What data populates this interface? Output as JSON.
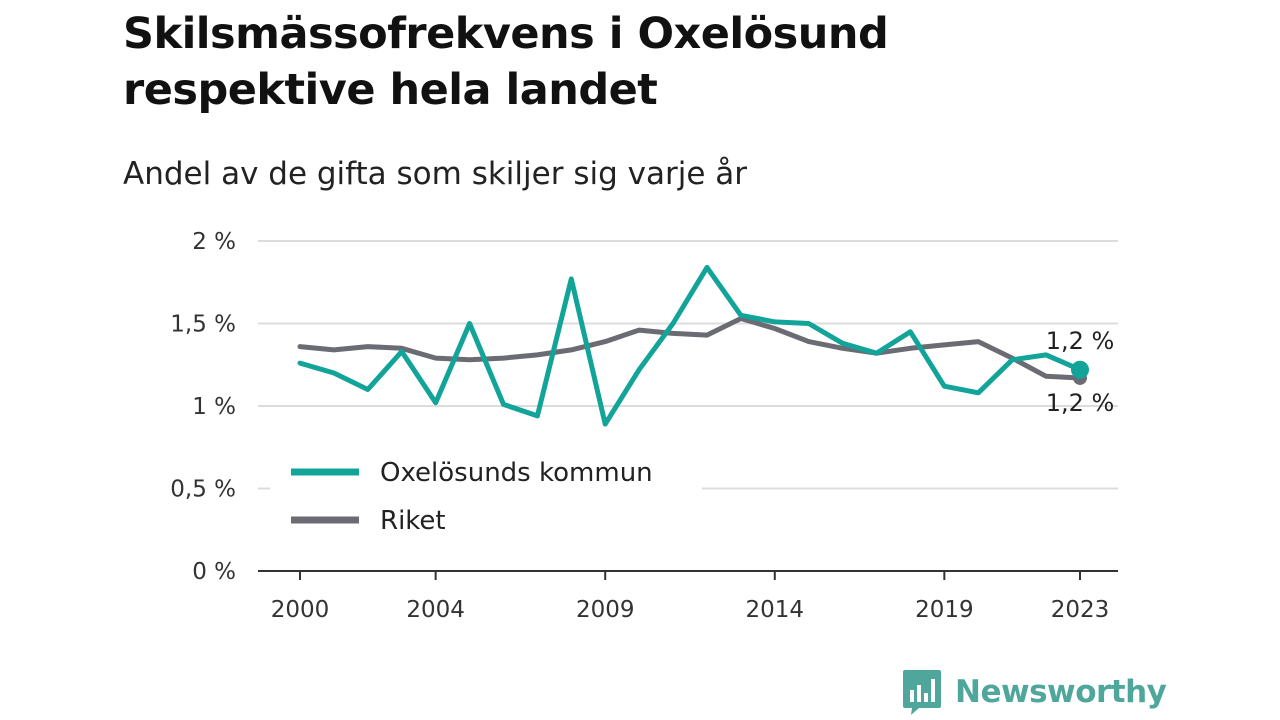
{
  "header": {
    "title": "Skilsmässofrekvens i Oxelösund respektive hela landet",
    "subtitle": "Andel av de gifta som skiljer sig varje år"
  },
  "colors": {
    "oxelosund": "#12a499",
    "riket": "#6b6b73",
    "grid": "#dcdcdc",
    "axis": "#333333",
    "brand": "#4fa79c"
  },
  "logo": {
    "text": "Newsworthy",
    "icon": "bar-chart-speech-bubble-icon"
  },
  "chart_data": {
    "type": "line",
    "x": [
      2000,
      2001,
      2002,
      2003,
      2004,
      2005,
      2006,
      2007,
      2008,
      2009,
      2010,
      2011,
      2012,
      2013,
      2014,
      2015,
      2016,
      2017,
      2018,
      2019,
      2020,
      2021,
      2022,
      2023
    ],
    "series": [
      {
        "name": "Oxelösunds kommun",
        "color": "#12a499",
        "values": [
          1.26,
          1.2,
          1.1,
          1.33,
          1.02,
          1.5,
          1.01,
          0.94,
          1.77,
          0.89,
          1.22,
          1.5,
          1.84,
          1.55,
          1.51,
          1.5,
          1.38,
          1.32,
          1.45,
          1.12,
          1.08,
          1.28,
          1.31,
          1.22
        ]
      },
      {
        "name": "Riket",
        "color": "#6b6b73",
        "values": [
          1.36,
          1.34,
          1.36,
          1.35,
          1.29,
          1.28,
          1.29,
          1.31,
          1.34,
          1.39,
          1.46,
          1.44,
          1.43,
          1.53,
          1.47,
          1.39,
          1.35,
          1.32,
          1.35,
          1.37,
          1.39,
          1.29,
          1.18,
          1.17
        ]
      }
    ],
    "end_labels": [
      "1,2 %",
      "1,2 %"
    ],
    "y_ticks": [
      {
        "value": 0,
        "label": "0 %"
      },
      {
        "value": 0.5,
        "label": "0,5 %"
      },
      {
        "value": 1,
        "label": "1 %"
      },
      {
        "value": 1.5,
        "label": "1,5 %"
      },
      {
        "value": 2,
        "label": "2 %"
      }
    ],
    "x_ticks": [
      {
        "value": 2000,
        "label": "2000"
      },
      {
        "value": 2004,
        "label": "2004"
      },
      {
        "value": 2009,
        "label": "2009"
      },
      {
        "value": 2014,
        "label": "2014"
      },
      {
        "value": 2019,
        "label": "2019"
      },
      {
        "value": 2023,
        "label": "2023"
      }
    ],
    "ylim": [
      0,
      2
    ],
    "xlim": [
      2000,
      2023
    ],
    "grid": true,
    "legend_position": "bottom-left"
  }
}
